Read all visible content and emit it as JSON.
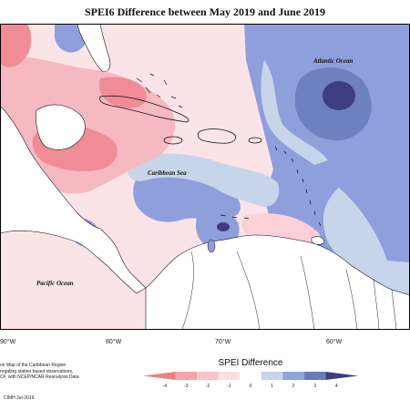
{
  "title": "SPEI6 Difference between May 2019 and June 2019",
  "labels": {
    "atlantic": "Atlantic Ocean",
    "caribbean": "Caribbean Sea",
    "pacific": "Pacific Ocean"
  },
  "longitudes": [
    "90°W",
    "80°W",
    "70°W",
    "60°W"
  ],
  "caption": {
    "line1": "on Map of the Caribbean Region",
    "line2": "regating station based observations,",
    "line3": "CF, with NCEP/NCAR Reanalysis Data."
  },
  "credit": "CIMH Jul-2019",
  "legend": {
    "title": "SPEI Difference",
    "ticks": [
      "-4",
      "-3",
      "-2",
      "-1",
      "0",
      "1",
      "2",
      "3",
      "4"
    ],
    "colors": [
      "#f08080",
      "#f4a3a8",
      "#f8c4c9",
      "#fbe0e3",
      "#ffffff",
      "#c7d5ea",
      "#8fa3dc",
      "#6b7ab8",
      "#3d3d82"
    ]
  }
}
